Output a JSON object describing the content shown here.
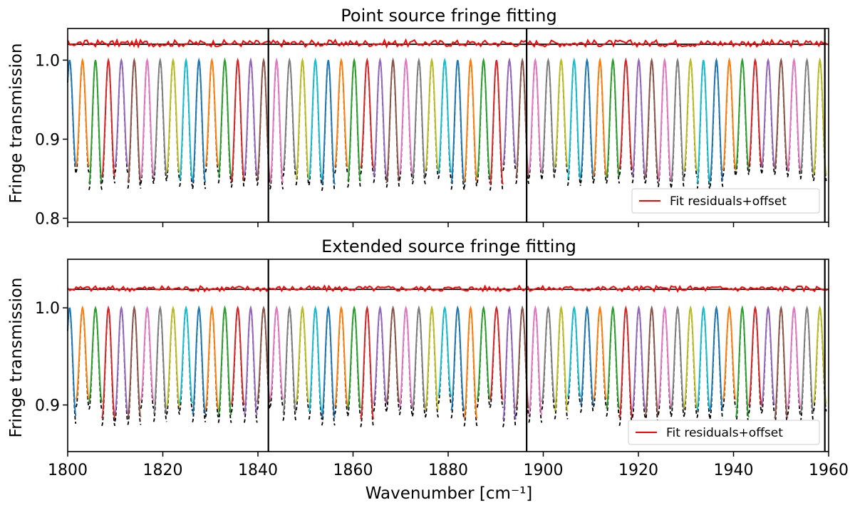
{
  "chart_data": [
    {
      "type": "line",
      "title": "Point source fringe fitting",
      "xlabel": "",
      "ylabel": "Fringe transmission",
      "xlim": [
        1800,
        1960
      ],
      "ylim": [
        0.795,
        1.04
      ],
      "yticks": [
        0.8,
        0.9,
        1.0
      ],
      "ytick_labels": [
        "0.8",
        "0.9",
        "1.0"
      ],
      "xticks": [
        1800,
        1820,
        1840,
        1860,
        1880,
        1900,
        1920,
        1940,
        1960
      ],
      "xtick_labels_visible": false,
      "segment_boundaries": [
        1842.2,
        1896.5,
        1959.2
      ],
      "offset_line_y": 1.02,
      "residual_amplitude": 0.006,
      "fringe": {
        "period": 2.72,
        "peak": 1.0,
        "min_range": [
          0.842,
          0.868
        ],
        "start_phase": 1800.4
      },
      "series": [
        {
          "name": "Fit residuals+offset",
          "color": "#ff0000"
        }
      ],
      "legend": "bottom-right",
      "fit_colors": [
        "#1f77b4",
        "#ff7f0e",
        "#2ca02c",
        "#d62728",
        "#9467bd",
        "#8c564b",
        "#e377c2",
        "#7f7f7f",
        "#bcbd22",
        "#17becf"
      ],
      "data_line_style": "black dashed"
    },
    {
      "type": "line",
      "title": "Extended source fringe fitting",
      "xlabel": "Wavenumber [cm⁻¹]",
      "ylabel": "Fringe transmission",
      "xlim": [
        1800,
        1960
      ],
      "ylim": [
        0.852,
        1.05
      ],
      "yticks": [
        0.9,
        1.0
      ],
      "ytick_labels": [
        "0.9",
        "1.0"
      ],
      "xticks": [
        1800,
        1820,
        1840,
        1860,
        1880,
        1900,
        1920,
        1940,
        1960
      ],
      "xtick_labels": [
        "1800",
        "1820",
        "1840",
        "1860",
        "1880",
        "1900",
        "1920",
        "1940",
        "1960"
      ],
      "segment_boundaries": [
        1842.2,
        1896.5,
        1959.2
      ],
      "offset_line_y": 1.019,
      "residual_amplitude": 0.004,
      "fringe": {
        "period": 2.72,
        "peak": 1.0,
        "min_range": [
          0.885,
          0.91
        ],
        "start_phase": 1800.4
      },
      "series": [
        {
          "name": "Fit residuals+offset",
          "color": "#ff0000"
        }
      ],
      "legend": "bottom-right",
      "fit_colors": [
        "#1f77b4",
        "#ff7f0e",
        "#2ca02c",
        "#d62728",
        "#9467bd",
        "#8c564b",
        "#e377c2",
        "#7f7f7f",
        "#bcbd22",
        "#17becf"
      ],
      "data_line_style": "black dashed"
    }
  ]
}
